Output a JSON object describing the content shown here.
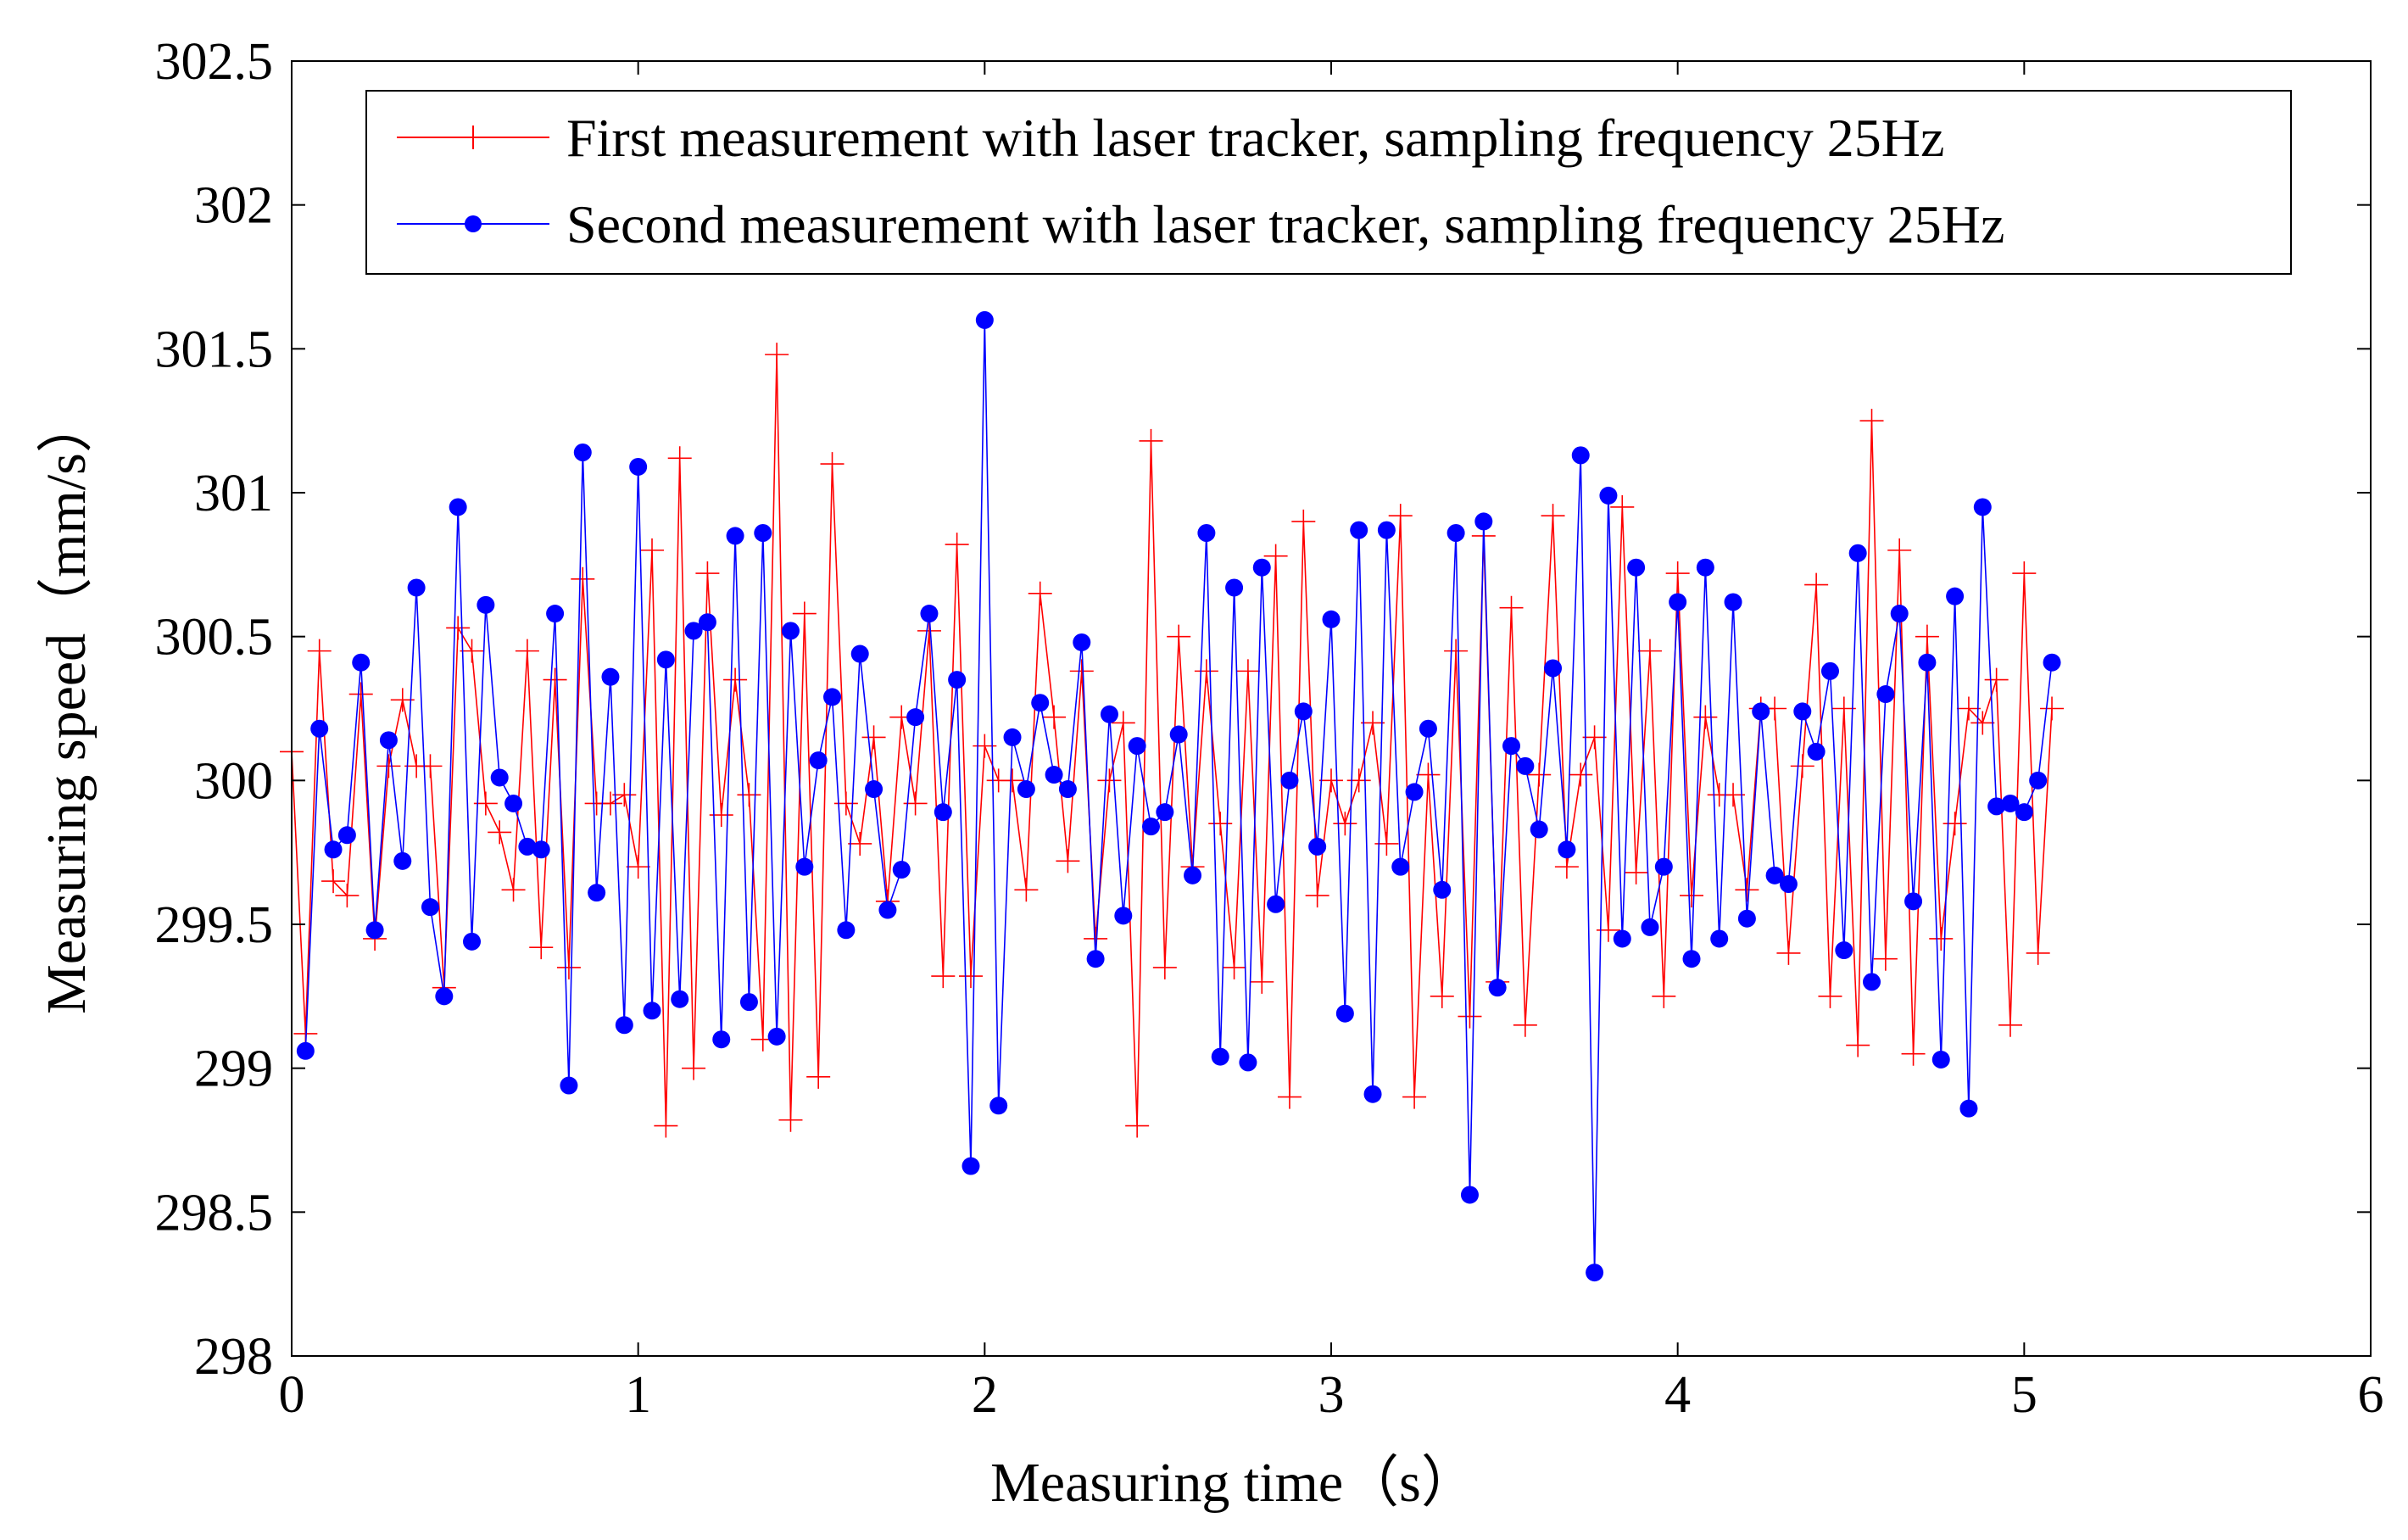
{
  "chart_data": {
    "type": "line",
    "title": "",
    "xlabel": "Measuring time（s）",
    "ylabel": "Measuring speed（mm/s）",
    "xlim": [
      0,
      6
    ],
    "ylim": [
      298,
      302.5
    ],
    "xticks": [
      "0",
      "1",
      "2",
      "3",
      "4",
      "5",
      "6"
    ],
    "yticks": [
      "298",
      "298.5",
      "299",
      "299.5",
      "300",
      "300.5",
      "301",
      "301.5",
      "302",
      "302.5"
    ],
    "legend_position": "top",
    "series": [
      {
        "name": "First measurement with laser tracker, sampling frequency 25Hz",
        "color": "#ff0000",
        "marker": "plus",
        "x": [
          0.0,
          0.04,
          0.08,
          0.12,
          0.16,
          0.2,
          0.24,
          0.28,
          0.32,
          0.36,
          0.4,
          0.44,
          0.48,
          0.52,
          0.56,
          0.6,
          0.64,
          0.68,
          0.72,
          0.76,
          0.8,
          0.84,
          0.88,
          0.92,
          0.96,
          1.0,
          1.04,
          1.08,
          1.12,
          1.16,
          1.2,
          1.24,
          1.28,
          1.32,
          1.36,
          1.4,
          1.44,
          1.48,
          1.52,
          1.56,
          1.6,
          1.64,
          1.68,
          1.72,
          1.76,
          1.8,
          1.84,
          1.88,
          1.92,
          1.96,
          2.0,
          2.04,
          2.08,
          2.12,
          2.16,
          2.2,
          2.24,
          2.28,
          2.32,
          2.36,
          2.4,
          2.44,
          2.48,
          2.52,
          2.56,
          2.6,
          2.64,
          2.68,
          2.72,
          2.76,
          2.8,
          2.84,
          2.88,
          2.92,
          2.96,
          3.0,
          3.04,
          3.08,
          3.12,
          3.16,
          3.2,
          3.24,
          3.28,
          3.32,
          3.36,
          3.4,
          3.44,
          3.48,
          3.52,
          3.56,
          3.6,
          3.64,
          3.68,
          3.72,
          3.76,
          3.8,
          3.84,
          3.88,
          3.92,
          3.96,
          4.0,
          4.04,
          4.08,
          4.12,
          4.16,
          4.2,
          4.24,
          4.28,
          4.32,
          4.36,
          4.4,
          4.44,
          4.48,
          4.52,
          4.56,
          4.6,
          4.64,
          4.68,
          4.72,
          4.76,
          4.8,
          4.84,
          4.88,
          4.92,
          4.96,
          5.0,
          5.04,
          5.08
        ],
        "y": [
          300.1,
          299.12,
          300.45,
          299.65,
          299.6,
          300.3,
          299.45,
          300.05,
          300.28,
          300.05,
          300.05,
          299.28,
          300.53,
          300.45,
          299.92,
          299.82,
          299.62,
          300.45,
          299.42,
          300.35,
          299.35,
          300.7,
          299.92,
          299.92,
          299.95,
          299.7,
          300.8,
          298.8,
          301.12,
          299.0,
          300.72,
          299.88,
          300.35,
          299.95,
          299.1,
          301.48,
          298.82,
          300.58,
          298.97,
          301.1,
          299.92,
          299.78,
          300.15,
          299.58,
          300.22,
          299.92,
          300.52,
          299.32,
          300.82,
          299.32,
          300.12,
          300.0,
          300.0,
          299.62,
          300.65,
          300.22,
          299.72,
          300.38,
          299.45,
          300.0,
          300.2,
          298.8,
          301.18,
          299.35,
          300.5,
          299.7,
          300.38,
          299.85,
          299.35,
          300.38,
          299.3,
          300.78,
          298.9,
          300.9,
          299.6,
          300.0,
          299.85,
          300.0,
          300.2,
          299.78,
          300.92,
          298.9,
          300.02,
          299.25,
          300.45,
          299.18,
          300.85,
          299.3,
          300.6,
          299.15,
          300.02,
          300.92,
          299.7,
          300.02,
          300.15,
          299.48,
          300.95,
          299.68,
          300.45,
          299.25,
          300.72,
          299.6,
          300.22,
          299.95,
          299.95,
          299.62,
          300.25,
          300.25,
          299.4,
          300.05,
          300.68,
          299.25,
          300.25,
          299.08,
          301.25,
          299.38,
          300.8,
          299.05,
          300.5,
          299.45,
          299.85,
          300.25,
          300.2,
          300.35,
          299.15,
          300.72,
          299.4,
          300.25
        ]
      },
      {
        "name": "Second measurement with laser tracker, sampling frequency 25Hz",
        "color": "#0000ff",
        "marker": "circle",
        "x": [
          0.04,
          0.08,
          0.12,
          0.16,
          0.2,
          0.24,
          0.28,
          0.32,
          0.36,
          0.4,
          0.44,
          0.48,
          0.52,
          0.56,
          0.6,
          0.64,
          0.68,
          0.72,
          0.76,
          0.8,
          0.84,
          0.88,
          0.92,
          0.96,
          1.0,
          1.04,
          1.08,
          1.12,
          1.16,
          1.2,
          1.24,
          1.28,
          1.32,
          1.36,
          1.4,
          1.44,
          1.48,
          1.52,
          1.56,
          1.6,
          1.64,
          1.68,
          1.72,
          1.76,
          1.8,
          1.84,
          1.88,
          1.92,
          1.96,
          2.0,
          2.04,
          2.08,
          2.12,
          2.16,
          2.2,
          2.24,
          2.28,
          2.32,
          2.36,
          2.4,
          2.44,
          2.48,
          2.52,
          2.56,
          2.6,
          2.64,
          2.68,
          2.72,
          2.76,
          2.8,
          2.84,
          2.88,
          2.92,
          2.96,
          3.0,
          3.04,
          3.08,
          3.12,
          3.16,
          3.2,
          3.24,
          3.28,
          3.32,
          3.36,
          3.4,
          3.44,
          3.48,
          3.52,
          3.56,
          3.6,
          3.64,
          3.68,
          3.72,
          3.76,
          3.8,
          3.84,
          3.88,
          3.92,
          3.96,
          4.0,
          4.04,
          4.08,
          4.12,
          4.16,
          4.2,
          4.24,
          4.28,
          4.32,
          4.36,
          4.4,
          4.44,
          4.48,
          4.52,
          4.56,
          4.6,
          4.64,
          4.68,
          4.72,
          4.76,
          4.8,
          4.84,
          4.88,
          4.92,
          4.96,
          5.0,
          5.04,
          5.08
        ],
        "y": [
          299.06,
          300.18,
          299.76,
          299.81,
          300.41,
          299.48,
          300.14,
          299.72,
          300.67,
          299.56,
          299.25,
          300.95,
          299.44,
          300.61,
          300.01,
          299.92,
          299.77,
          299.76,
          300.58,
          298.94,
          301.14,
          299.61,
          300.36,
          299.15,
          301.09,
          299.2,
          300.42,
          299.24,
          300.52,
          300.55,
          299.1,
          300.85,
          299.23,
          300.86,
          299.11,
          300.52,
          299.7,
          300.07,
          300.29,
          299.48,
          300.44,
          299.97,
          299.55,
          299.69,
          300.22,
          300.58,
          299.89,
          300.35,
          298.66,
          301.6,
          298.87,
          300.15,
          299.97,
          300.27,
          300.02,
          299.97,
          300.48,
          299.38,
          300.23,
          299.53,
          300.12,
          299.84,
          299.89,
          300.16,
          299.67,
          300.86,
          299.04,
          300.67,
          299.02,
          300.74,
          299.57,
          300.0,
          300.24,
          299.77,
          300.56,
          299.19,
          300.87,
          298.91,
          300.87,
          299.7,
          299.96,
          300.18,
          299.62,
          300.86,
          298.56,
          300.9,
          299.28,
          300.12,
          300.05,
          299.83,
          300.39,
          299.76,
          301.13,
          298.29,
          300.99,
          299.45,
          300.74,
          299.49,
          299.7,
          300.62,
          299.38,
          300.74,
          299.45,
          300.62,
          299.52,
          300.24,
          299.67,
          299.64,
          300.24,
          300.1,
          300.38,
          299.41,
          300.79,
          299.3,
          300.3,
          300.58,
          299.58,
          300.41,
          299.03,
          300.64,
          298.86,
          300.95,
          299.91,
          299.92,
          299.89,
          300.0,
          300.41
        ]
      }
    ]
  }
}
